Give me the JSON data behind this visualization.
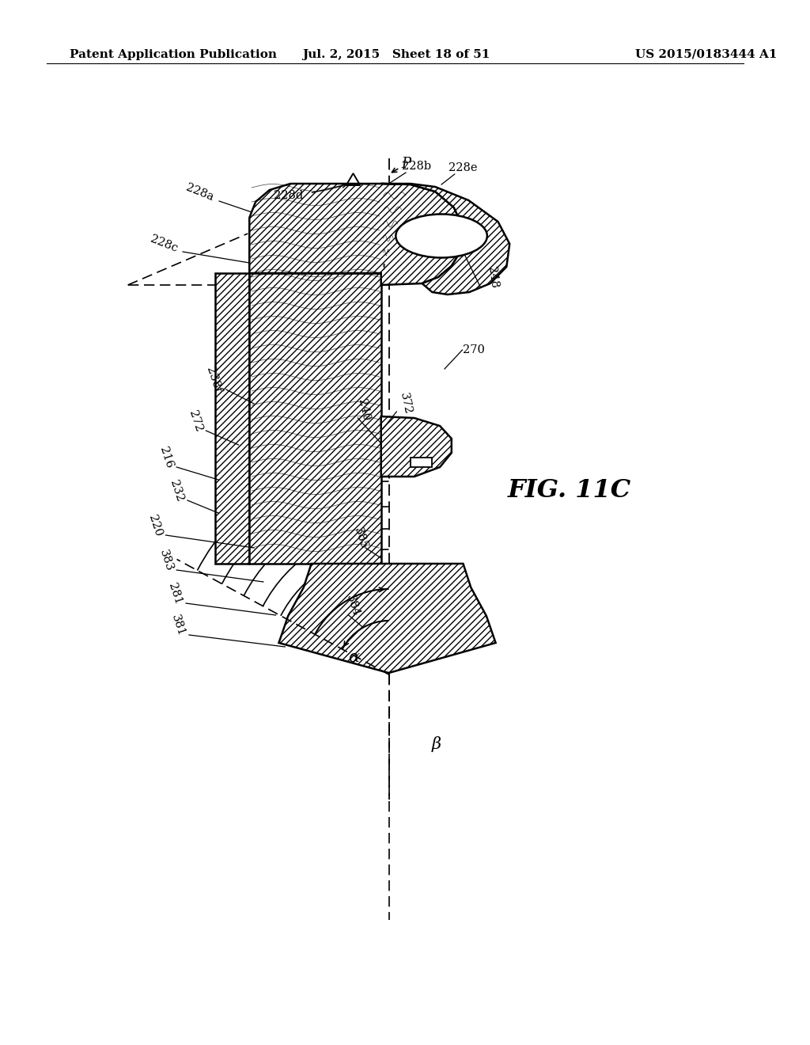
{
  "header_left": "Patent Application Publication",
  "header_center": "Jul. 2, 2015   Sheet 18 of 51",
  "header_right": "US 2015/0183444 A1",
  "fig_label": "FIG. 11C",
  "bg_color": "#ffffff"
}
